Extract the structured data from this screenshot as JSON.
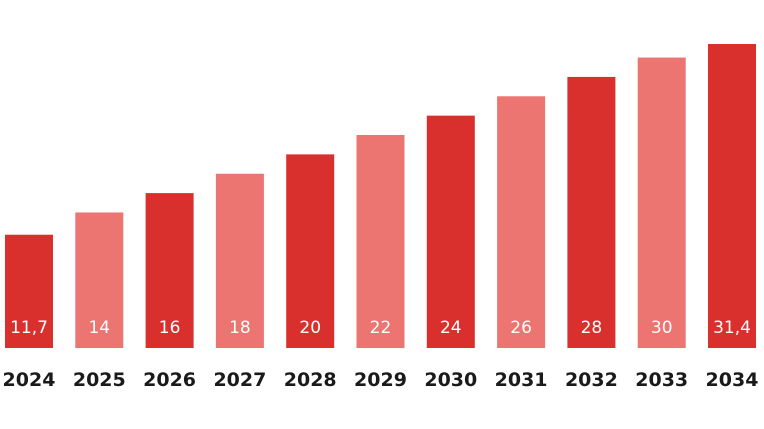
{
  "chart_data": {
    "type": "bar",
    "categories": [
      "2024",
      "2025",
      "2026",
      "2027",
      "2028",
      "2029",
      "2030",
      "2031",
      "2032",
      "2033",
      "2034"
    ],
    "values": [
      11.7,
      14,
      16,
      18,
      20,
      22,
      24,
      26,
      28,
      30,
      31.4
    ],
    "value_labels": [
      "11,7",
      "14",
      "16",
      "18",
      "20",
      "22",
      "24",
      "26",
      "28",
      "30",
      "31,4"
    ],
    "bar_colors": [
      "#d9302d",
      "#ec7471",
      "#d9302d",
      "#ec7471",
      "#d9302d",
      "#ec7471",
      "#d9302d",
      "#ec7471",
      "#d9302d",
      "#ec7471",
      "#d9302d"
    ],
    "title": "",
    "xlabel": "",
    "ylabel": "",
    "grid": false,
    "ylim": [
      0,
      31.4
    ]
  }
}
